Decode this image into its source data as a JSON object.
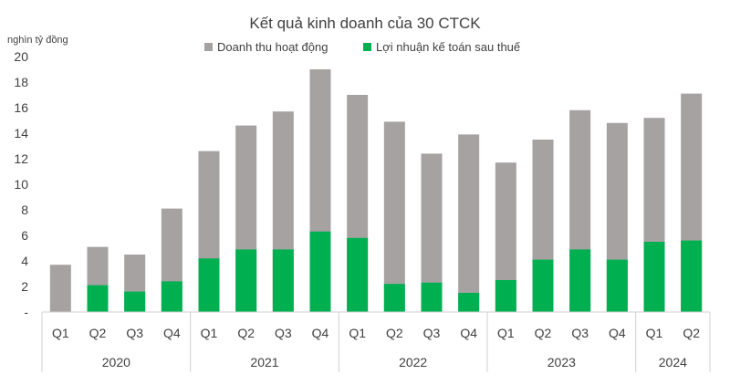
{
  "chart_data": {
    "type": "bar",
    "stacked": false,
    "overlapping_bars": true,
    "title": "Kết quả kinh doanh của 30 CTCK",
    "ylabel": "nghìn tỷ đồng",
    "xlabel": "",
    "ylim": [
      0,
      20
    ],
    "yticks": [
      0,
      2,
      4,
      6,
      8,
      10,
      12,
      14,
      16,
      18,
      20
    ],
    "ytick_labels": [
      "-",
      "2",
      "4",
      "6",
      "8",
      "10",
      "12",
      "14",
      "16",
      "18",
      "20"
    ],
    "grid": false,
    "legend_position": "top",
    "categories": [
      "Q1",
      "Q2",
      "Q3",
      "Q4",
      "Q1",
      "Q2",
      "Q3",
      "Q4",
      "Q1",
      "Q2",
      "Q3",
      "Q4",
      "Q1",
      "Q2",
      "Q3",
      "Q4",
      "Q1",
      "Q2"
    ],
    "groups": [
      {
        "label": "2020",
        "count": 4
      },
      {
        "label": "2021",
        "count": 4
      },
      {
        "label": "2022",
        "count": 4
      },
      {
        "label": "2023",
        "count": 4
      },
      {
        "label": "2024",
        "count": 2
      }
    ],
    "series": [
      {
        "name": "Doanh thu hoạt động",
        "color": "#a6a2a2",
        "values": [
          3.7,
          5.1,
          4.5,
          8.1,
          12.6,
          14.6,
          15.7,
          19.0,
          17.0,
          14.9,
          12.4,
          13.9,
          11.7,
          13.5,
          15.8,
          14.8,
          15.2,
          17.1
        ]
      },
      {
        "name": "Lợi nhuận kế toán sau thuế",
        "color": "#00b050",
        "values": [
          0,
          2.1,
          1.6,
          2.4,
          4.2,
          4.9,
          4.9,
          6.3,
          5.8,
          2.2,
          2.3,
          1.5,
          2.5,
          4.1,
          4.9,
          4.1,
          5.5,
          5.6
        ]
      }
    ]
  }
}
